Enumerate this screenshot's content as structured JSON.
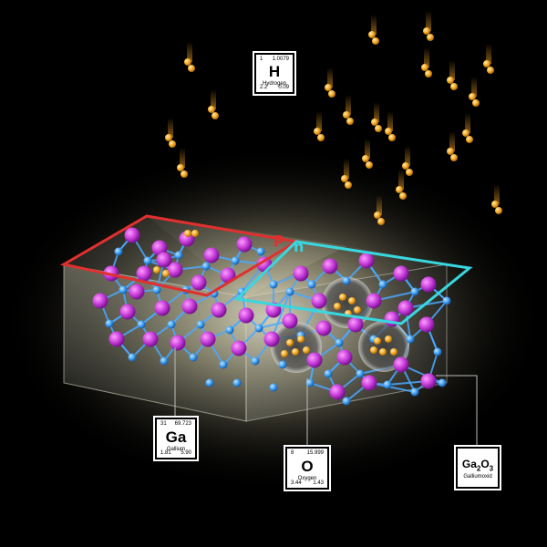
{
  "colors": {
    "background": "#000000",
    "hydrogen": "#f5a623",
    "gallium": "#c83cdc",
    "oxygen": "#3aa0ff",
    "p_region": "#e0302f",
    "n_region": "#39d7df",
    "glow": "#fff6c8"
  },
  "region_labels": {
    "p": "p",
    "n": "n"
  },
  "elements": {
    "hydrogen": {
      "number": "1",
      "mass": "1.0079",
      "symbol": "H",
      "name": "Hydrogen",
      "electronegativity": "2.2",
      "ionization": "0.09"
    },
    "gallium": {
      "number": "31",
      "mass": "69.723",
      "symbol": "Ga",
      "name": "Gallium",
      "electronegativity": "1.81",
      "ionization": "5.90"
    },
    "oxygen": {
      "number": "8",
      "mass": "15.999",
      "symbol": "O",
      "name": "Oxygen",
      "electronegativity": "3.44",
      "ionization": "1.43"
    },
    "gallium_oxide": {
      "symbol_main": "Ga",
      "sub1": "2",
      "symbol_mid": "O",
      "sub2": "3",
      "name": "Galliumoxid"
    }
  }
}
